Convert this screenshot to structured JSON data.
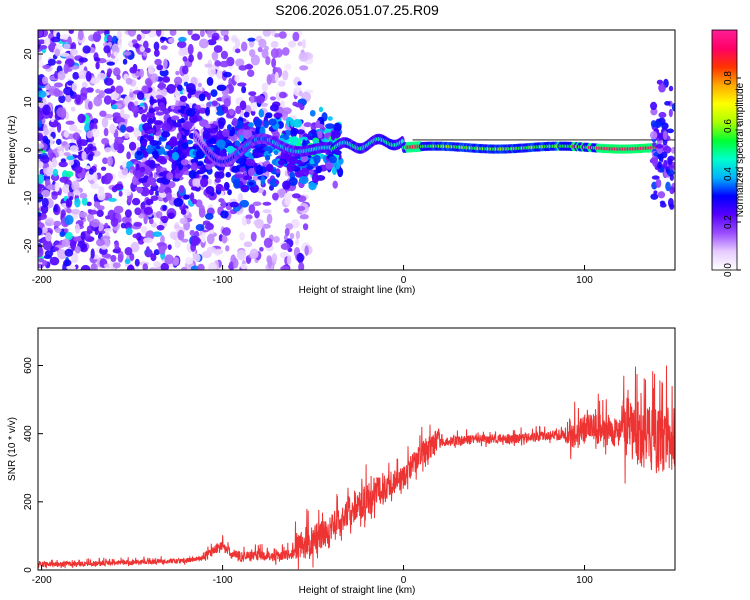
{
  "title": "S206.2026.051.07.25.R09",
  "chart_data": [
    {
      "type": "heatmap",
      "name": "spectrogram",
      "xlabel": "Height of straight line (km)",
      "ylabel": "Frequency (Hz)",
      "xlim": [
        -202,
        150
      ],
      "ylim": [
        -25,
        25
      ],
      "x_ticks": [
        -200,
        -100,
        0,
        100
      ],
      "y_ticks": [
        -20,
        -10,
        0,
        10,
        20
      ],
      "grid": false,
      "colorbar": {
        "label": "Normalized spectral amplitude",
        "range": [
          0,
          1
        ],
        "ticks": [
          0.0,
          0.2,
          0.4,
          0.6,
          0.8
        ],
        "colors": [
          "#ffffff",
          "#e6ccff",
          "#9a4dff",
          "#5500ff",
          "#0000ff",
          "#00b4ff",
          "#00ffcc",
          "#00ff33",
          "#aaff00",
          "#ffff00",
          "#ffaa00",
          "#ff3300",
          "#ff0066",
          "#ff1e96"
        ]
      },
      "signal_frequency_hz": 0.5,
      "notes": "Spectral energy scattered at low amplitude for heights below -110 km; narrow band near 0-1 Hz strengthens from -110 km upward, peaking (red) near 0-10 km and 85-140 km."
    },
    {
      "type": "line",
      "name": "snr",
      "xlabel": "Height of straight line (km)",
      "ylabel": "SNR (10 * v/v)",
      "xlim": [
        -202,
        150
      ],
      "ylim": [
        0,
        710
      ],
      "x_ticks": [
        -200,
        -100,
        0,
        100
      ],
      "y_ticks": [
        0,
        200,
        400,
        600
      ],
      "color": "#ee3333",
      "series": [
        {
          "name": "SNR",
          "x": [
            -202,
            -180,
            -160,
            -140,
            -120,
            -110,
            -100,
            -95,
            -90,
            -80,
            -70,
            -60,
            -55,
            -50,
            -45,
            -40,
            -35,
            -30,
            -25,
            -20,
            -15,
            -10,
            -5,
            0,
            5,
            10,
            15,
            20,
            30,
            40,
            50,
            60,
            70,
            80,
            90,
            95,
            100,
            110,
            120,
            130,
            140,
            150
          ],
          "y": [
            15,
            15,
            20,
            22,
            25,
            35,
            70,
            40,
            35,
            40,
            35,
            45,
            60,
            70,
            90,
            100,
            130,
            160,
            180,
            190,
            210,
            230,
            250,
            260,
            300,
            330,
            355,
            370,
            375,
            380,
            380,
            380,
            385,
            390,
            390,
            380,
            400,
            400,
            390,
            370,
            350,
            360
          ]
        }
      ]
    }
  ]
}
